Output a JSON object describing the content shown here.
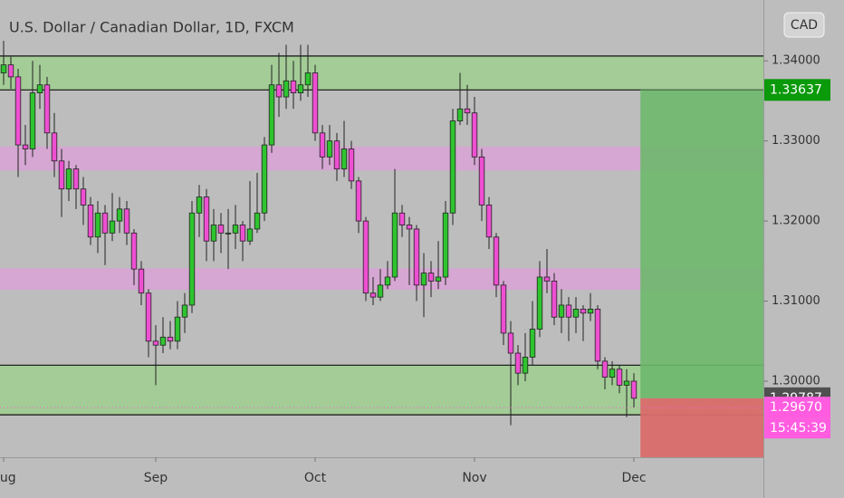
{
  "chart_data": {
    "type": "candlestick",
    "title": "U.S. Dollar / Canadian Dollar, 1D, FXCM",
    "currency_button": "CAD",
    "up_color": "#2fc42f",
    "down_color": "#ee4fd2",
    "open": [
      1.3385,
      1.3395,
      1.338,
      1.3295,
      1.329,
      1.336,
      1.337,
      1.331,
      1.3275,
      1.324,
      1.3265,
      1.324,
      1.322,
      1.318,
      1.321,
      1.3185,
      1.32,
      1.3215,
      1.3185,
      1.314,
      1.311,
      1.305,
      1.3045,
      1.3055,
      1.305,
      1.308,
      1.3095,
      1.321,
      1.323,
      1.3175,
      1.3195,
      1.3185,
      1.3185,
      1.3195,
      1.3175,
      1.319,
      1.321,
      1.3295,
      1.337,
      1.3355,
      1.3375,
      1.336,
      1.337,
      1.3385,
      1.331,
      1.328,
      1.33,
      1.3265,
      1.329,
      1.325,
      1.32,
      1.311,
      1.3105,
      1.312,
      1.313,
      1.321,
      1.3195,
      1.319,
      1.312,
      1.3135,
      1.3125,
      1.313,
      1.321,
      1.3325,
      1.334,
      1.3335,
      1.328,
      1.322,
      1.318,
      1.312,
      1.306,
      1.3035,
      1.301,
      1.303,
      1.3065,
      1.313,
      1.3125,
      1.308,
      1.3095,
      1.308,
      1.309,
      1.3085,
      1.309,
      1.3025,
      1.3005,
      1.3015,
      1.2995,
      1.3
    ],
    "high": [
      1.3425,
      1.3405,
      1.339,
      1.332,
      1.34,
      1.3395,
      1.338,
      1.3335,
      1.329,
      1.3275,
      1.327,
      1.3255,
      1.323,
      1.3225,
      1.322,
      1.3235,
      1.323,
      1.3225,
      1.319,
      1.315,
      1.3115,
      1.307,
      1.308,
      1.3075,
      1.31,
      1.311,
      1.3225,
      1.3245,
      1.324,
      1.3215,
      1.321,
      1.3215,
      1.322,
      1.32,
      1.325,
      1.326,
      1.3305,
      1.3395,
      1.341,
      1.342,
      1.34,
      1.342,
      1.342,
      1.3395,
      1.332,
      1.332,
      1.331,
      1.3325,
      1.33,
      1.3255,
      1.3205,
      1.313,
      1.314,
      1.315,
      1.3265,
      1.322,
      1.3205,
      1.3195,
      1.316,
      1.315,
      1.3175,
      1.3225,
      1.334,
      1.3385,
      1.337,
      1.3355,
      1.329,
      1.323,
      1.3185,
      1.3125,
      1.3075,
      1.3045,
      1.306,
      1.31,
      1.315,
      1.3165,
      1.3135,
      1.3115,
      1.3105,
      1.3105,
      1.3095,
      1.311,
      1.3095,
      1.303,
      1.3025,
      1.302,
      1.3015,
      1.301
    ],
    "low": [
      1.337,
      1.3365,
      1.3255,
      1.327,
      1.328,
      1.334,
      1.329,
      1.3255,
      1.3205,
      1.3225,
      1.3215,
      1.3195,
      1.317,
      1.316,
      1.3145,
      1.3175,
      1.3185,
      1.317,
      1.312,
      1.3095,
      1.303,
      1.2995,
      1.3035,
      1.304,
      1.304,
      1.306,
      1.3085,
      1.318,
      1.315,
      1.315,
      1.316,
      1.314,
      1.3165,
      1.315,
      1.317,
      1.3185,
      1.32,
      1.3285,
      1.333,
      1.334,
      1.334,
      1.335,
      1.3355,
      1.33,
      1.3265,
      1.327,
      1.325,
      1.3255,
      1.324,
      1.3185,
      1.31,
      1.3095,
      1.31,
      1.3115,
      1.3125,
      1.318,
      1.312,
      1.31,
      1.308,
      1.3105,
      1.3115,
      1.312,
      1.3195,
      1.332,
      1.332,
      1.327,
      1.32,
      1.3165,
      1.3105,
      1.3045,
      1.2945,
      1.2995,
      1.3,
      1.302,
      1.3055,
      1.311,
      1.307,
      1.306,
      1.305,
      1.306,
      1.305,
      1.3075,
      1.3015,
      1.299,
      1.2995,
      1.2985,
      1.2955,
      1.2967
    ],
    "close": [
      1.3395,
      1.338,
      1.3295,
      1.329,
      1.336,
      1.337,
      1.331,
      1.3275,
      1.324,
      1.3265,
      1.324,
      1.322,
      1.318,
      1.321,
      1.3185,
      1.32,
      1.3215,
      1.3185,
      1.314,
      1.311,
      1.305,
      1.3045,
      1.3055,
      1.305,
      1.308,
      1.3095,
      1.321,
      1.323,
      1.3175,
      1.3195,
      1.3185,
      1.3185,
      1.3195,
      1.3175,
      1.319,
      1.321,
      1.3295,
      1.337,
      1.3355,
      1.3375,
      1.336,
      1.337,
      1.3385,
      1.331,
      1.328,
      1.33,
      1.3265,
      1.329,
      1.325,
      1.32,
      1.311,
      1.3105,
      1.312,
      1.313,
      1.321,
      1.3195,
      1.319,
      1.312,
      1.3135,
      1.3125,
      1.313,
      1.321,
      1.3325,
      1.334,
      1.3335,
      1.328,
      1.322,
      1.318,
      1.312,
      1.306,
      1.3035,
      1.301,
      1.303,
      1.3065,
      1.313,
      1.3125,
      1.308,
      1.3095,
      1.308,
      1.309,
      1.3085,
      1.309,
      1.3025,
      1.3005,
      1.3015,
      1.2995,
      1.3,
      1.29787
    ],
    "xlim": [
      -0.5,
      104.875
    ],
    "xticks": [
      {
        "value": 0,
        "label": "Aug"
      },
      {
        "value": 21,
        "label": "Sep"
      },
      {
        "value": 43,
        "label": "Oct"
      },
      {
        "value": 65,
        "label": "Nov"
      },
      {
        "value": 87,
        "label": "Dec"
      }
    ],
    "ylim": [
      1.2905,
      1.3476
    ],
    "yticks": [
      {
        "value": 1.3,
        "label": "1.30000"
      },
      {
        "value": 1.31,
        "label": "1.31000"
      },
      {
        "value": 1.32,
        "label": "1.32000"
      },
      {
        "value": 1.33,
        "label": "1.33000"
      },
      {
        "value": 1.34,
        "label": "1.34000"
      }
    ],
    "zones": [
      {
        "top": 1.3406,
        "bottom": 1.33637,
        "color": "#9fcf8f",
        "border": "#111111"
      },
      {
        "top": 1.3293,
        "bottom": 1.3263,
        "color": "#d9a3d6",
        "border": "none"
      },
      {
        "top": 1.3141,
        "bottom": 1.3114,
        "color": "#d9a3d6",
        "border": "none"
      },
      {
        "top": 1.302,
        "bottom": 1.2958,
        "color": "#9fcf8f",
        "border": "#111111"
      }
    ],
    "position": {
      "entry": 1.29787,
      "target": 1.33637,
      "stop": 1.2905,
      "profit_color": "#6db86d",
      "loss_color": "#d96b6b"
    },
    "price_tags": [
      {
        "value": 1.33637,
        "color": "#0a9a0a"
      },
      {
        "value": 1.29787,
        "color": "#505050"
      },
      {
        "value": 1.2967,
        "label": "1.29670",
        "color": "#ff5ce0"
      }
    ],
    "countdown": "15:45:39"
  }
}
